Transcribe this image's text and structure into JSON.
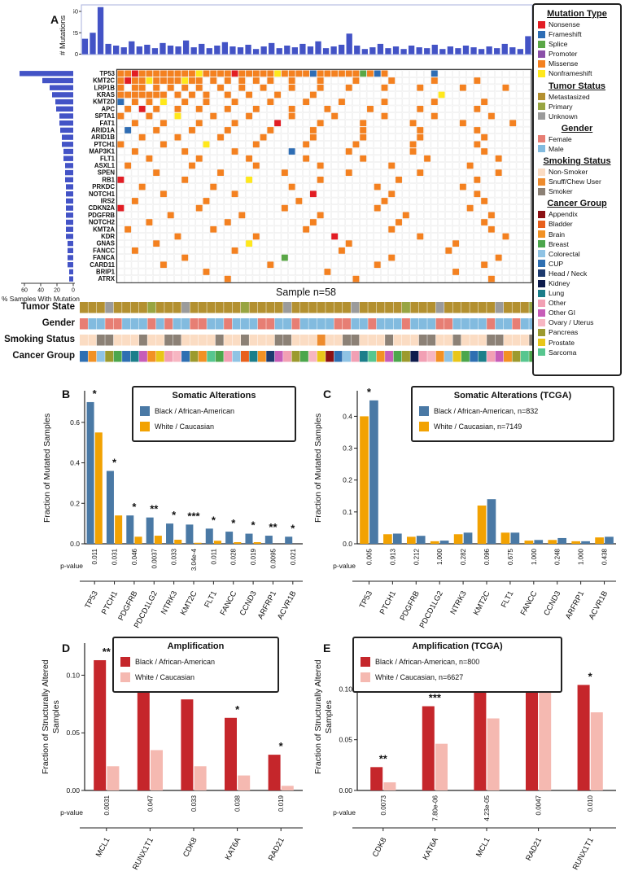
{
  "legend": {
    "sections": [
      {
        "title": "Mutation Type",
        "items": [
          {
            "label": "Nonsense",
            "color": "#e21d24"
          },
          {
            "label": "Frameshift",
            "color": "#2e6db4"
          },
          {
            "label": "Splice",
            "color": "#5aa746"
          },
          {
            "label": "Promoter",
            "color": "#8a4fa8"
          },
          {
            "label": "Missense",
            "color": "#f48120"
          },
          {
            "label": "Nonframeshift",
            "color": "#ffe81c"
          }
        ]
      },
      {
        "title": "Tumor Status",
        "items": [
          {
            "label": "Metastasized",
            "color": "#b39030"
          },
          {
            "label": "Primary",
            "color": "#98a542"
          },
          {
            "label": "Unknown",
            "color": "#9b9b9b"
          }
        ]
      },
      {
        "title": "Gender",
        "items": [
          {
            "label": "Female",
            "color": "#e77e74"
          },
          {
            "label": "Male",
            "color": "#82bbdf"
          }
        ]
      },
      {
        "title": "Smoking Status",
        "items": [
          {
            "label": "Non-Smoker",
            "color": "#fbdcc3"
          },
          {
            "label": "Snuff/Chew User",
            "color": "#ee8b2d"
          },
          {
            "label": "Smoker",
            "color": "#8c8176"
          }
        ]
      },
      {
        "title": "Cancer Group",
        "items": [
          {
            "label": "Appendix",
            "color": "#8b1013"
          },
          {
            "label": "Bladder",
            "color": "#e8601c"
          },
          {
            "label": "Brain",
            "color": "#f29124"
          },
          {
            "label": "Breast",
            "color": "#4ca64c"
          },
          {
            "label": "Colorectal",
            "color": "#8fc3e4"
          },
          {
            "label": "CUP",
            "color": "#2e6fb2"
          },
          {
            "label": "Head / Neck",
            "color": "#1d3a6e"
          },
          {
            "label": "Kidney",
            "color": "#0d1b4c"
          },
          {
            "label": "Lung",
            "color": "#1b7e8a"
          },
          {
            "label": "Other",
            "color": "#f2a0b4"
          },
          {
            "label": "Other GI",
            "color": "#c75db8"
          },
          {
            "label": "Ovary / Uterus",
            "color": "#f7b6c2"
          },
          {
            "label": "Pancreas",
            "color": "#9c9a2e"
          },
          {
            "label": "Prostate",
            "color": "#e8c619"
          },
          {
            "label": "Sarcoma",
            "color": "#57c68f"
          }
        ]
      }
    ]
  },
  "chart_data": {
    "A": {
      "type": "oncoprint",
      "label": "A",
      "sample_label": "Sample n=58",
      "top": {
        "type": "bar",
        "ylabel": "# Mutations",
        "yticks": [
          0,
          25,
          50
        ],
        "values": [
          18,
          25,
          55,
          12,
          10,
          8,
          15,
          9,
          11,
          7,
          13,
          10,
          9,
          16,
          8,
          12,
          7,
          10,
          14,
          9,
          8,
          11,
          6,
          9,
          13,
          7,
          10,
          8,
          12,
          9,
          15,
          7,
          9,
          11,
          24,
          10,
          6,
          8,
          12,
          7,
          9,
          6,
          10,
          8,
          7,
          11,
          6,
          9,
          7,
          10,
          8,
          6,
          9,
          7,
          12,
          8,
          6,
          21
        ]
      },
      "left": {
        "type": "bar",
        "xlabel": "% Samples With Mutation",
        "xticks": [
          60,
          40,
          20,
          0
        ]
      },
      "mutation_colors": {
        "N": "#e21d24",
        "F": "#2e6db4",
        "S": "#5aa746",
        "P": "#8a4fa8",
        "M": "#f48120",
        "X": "#ffe81c"
      },
      "rows": [
        {
          "gene": "TP53",
          "pct": 66,
          "cells": "0M,1M,2N,3M,4M,5M,6M,7M,8M,9M,10M,11X,12M,13M,14M,15M,16N,17M,18M,19M,20M,21M,22X,23M,24M,25M,26M,27F,28M,29M,30M,31M,32M,33M,34S,35M,36F,37M,44F"
        },
        {
          "gene": "KMT2C",
          "pct": 38,
          "cells": "0M,1N,2M,3M,4X,5M,6M,7M,8M,9X,10M,11M,13M,15M,17M,19M,21M,24M,28M,33M,38M,44M,50M"
        },
        {
          "gene": "LRP1B",
          "pct": 29,
          "cells": "0M,2M,3M,5M,7M,9M,11M,14M,17M,20M,24M,28M,32M,37M,42M,48M,54M"
        },
        {
          "gene": "KRAS",
          "pct": 26,
          "cells": "0M,1M,2M,3M,4M,5M,6M,8M,10M,12M,15M,18M,22M,27M,45X"
        },
        {
          "gene": "KMT2D",
          "pct": 22,
          "cells": "0F,2M,4M,6X,9M,12M,16M,21M,26M,31M,37M,44M,51M"
        },
        {
          "gene": "APC",
          "pct": 21,
          "cells": "1M,3N,5M,8M,11M,15M,19M,24M,29M,35M,42M,50M"
        },
        {
          "gene": "SPTA1",
          "pct": 17,
          "cells": "0M,4M,8X,13M,18M,24M,30M,37M,44M,52M"
        },
        {
          "gene": "FAT1",
          "pct": 17,
          "cells": "2M,6M,11M,16M,22N,28M,34M,41M,48M,55M"
        },
        {
          "gene": "ARID1A",
          "pct": 16,
          "cells": "1F,5M,10M,15M,21M,27M,34M,42M,50M"
        },
        {
          "gene": "ARID1B",
          "pct": 14,
          "cells": "3M,8M,14M,20M,27M,34M,42M,51M"
        },
        {
          "gene": "PTCH1",
          "pct": 14,
          "cells": "0M,6M,12X,19M,26M,33M,41M,50M"
        },
        {
          "gene": "MAP3K1",
          "pct": 12,
          "cells": "2M,9M,16M,24F,32M,41M,51M"
        },
        {
          "gene": "FLT1",
          "pct": 12,
          "cells": "4M,11M,18M,26M,34M,43M,53M"
        },
        {
          "gene": "ASXL1",
          "pct": 10,
          "cells": "1M,10M,19M,28M,38M,49M"
        },
        {
          "gene": "SPEN",
          "pct": 10,
          "cells": "5M,14M,23M,32M,42M,53M"
        },
        {
          "gene": "RB1",
          "pct": 10,
          "cells": "0N,9M,18X,28M,39M,50M"
        },
        {
          "gene": "PRKDC",
          "pct": 9,
          "cells": "3M,13M,24M,36M,48M"
        },
        {
          "gene": "NOTCH1",
          "pct": 9,
          "cells": "6M,16M,27N,38M,50M"
        },
        {
          "gene": "IRS2",
          "pct": 9,
          "cells": "2M,12M,25M,37M,51M"
        },
        {
          "gene": "CDKN2A",
          "pct": 9,
          "cells": "0N,11M,23M,36M,49M"
        },
        {
          "gene": "PDGFRB",
          "pct": 9,
          "cells": "7M,17M,28M,40M,52M"
        },
        {
          "gene": "NOTCH2",
          "pct": 9,
          "cells": "4M,15M,27M,39M,51M"
        },
        {
          "gene": "KMT2A",
          "pct": 9,
          "cells": "1M,13M,26M,38M,52M"
        },
        {
          "gene": "KDR",
          "pct": 9,
          "cells": "8M,19M,30N,42M,54M"
        },
        {
          "gene": "GNAS",
          "pct": 7,
          "cells": "5M,18X,32M,47M"
        },
        {
          "gene": "FANCC",
          "pct": 7,
          "cells": "2M,16M,31M,46M"
        },
        {
          "gene": "FANCA",
          "pct": 7,
          "cells": "9M,23S,38M,53M"
        },
        {
          "gene": "CARD11",
          "pct": 7,
          "cells": "6M,21M,36M,51M"
        },
        {
          "gene": "BRIP1",
          "pct": 5,
          "cells": "12M,29M,47M"
        },
        {
          "gene": "ATRX",
          "pct": 5,
          "cells": "15M,33M,52M"
        }
      ],
      "tracks": [
        {
          "label": "Tumor State",
          "codes": "MMMUMMMMPMMMUMMMMMMPMMMMUMMMMMMMUMMMMMPMMMUMMMMMMUMMMPMMMM",
          "palette": {
            "M": "#b39030",
            "P": "#98a542",
            "U": "#9b9b9b"
          }
        },
        {
          "label": "Gender",
          "codes": "FMMFFMMMFMFMMFFMMFMMMFFMMFMMMMFFMMFMMMFMMMFFMMMMFMMFMMMMMM",
          "palette": {
            "F": "#e77e74",
            "M": "#82bbdf"
          }
        },
        {
          "label": "Smoking Status",
          "codes": "NNKKNNNKNNKKNNNNKNNKNNNKKNNNSNNKKNNNKNNNKKNNKNNNKKNNNKNNKN",
          "palette": {
            "N": "#fbdcc3",
            "S": "#ee8b2d",
            "K": "#8c8176"
          }
        },
        {
          "label": "Cancer Group",
          "codes": "URCPEULGRTOVUPRSEOCBLRHGOPEVTAUCOLSRGEPKOVRCTEULOGRPSEOUHB",
          "palette": {
            "A": "#8b1013",
            "B": "#e8601c",
            "R": "#f29124",
            "E": "#4ca64c",
            "C": "#8fc3e4",
            "U": "#2e6fb2",
            "H": "#1d3a6e",
            "K": "#0d1b4c",
            "L": "#1b7e8a",
            "O": "#f2a0b4",
            "G": "#c75db8",
            "V": "#f7b6c2",
            "P": "#9c9a2e",
            "T": "#e8c619",
            "S": "#57c68f"
          }
        }
      ]
    },
    "B": {
      "type": "bar",
      "label": "B",
      "legend_title": "Somatic Alterations",
      "ylabel": "Fraction of Mutated Samples",
      "pvalue_label": "p-value",
      "ymax": 0.74,
      "yticks": [
        {
          "v": 0,
          "label": "0.0"
        },
        {
          "v": 0.2,
          "label": "0.2"
        },
        {
          "v": 0.4,
          "label": "0.4"
        },
        {
          "v": 0.6,
          "label": "0.6"
        }
      ],
      "bar_colors": [
        "#4a79a5",
        "#f2a202"
      ],
      "series": [
        {
          "name": "Black / African-American",
          "color": "#4a79a5"
        },
        {
          "name": "White / Caucasian",
          "color": "#f2a202"
        }
      ],
      "groups": [
        {
          "gene": "TP53",
          "v": [
            0.7,
            0.55
          ],
          "p": "0.011",
          "stars": "*"
        },
        {
          "gene": "PTCH1",
          "v": [
            0.36,
            0.14
          ],
          "p": "0.031",
          "stars": "*"
        },
        {
          "gene": "PDGFRB",
          "v": [
            0.14,
            0.035
          ],
          "p": "0.046",
          "stars": "*"
        },
        {
          "gene": "PDCD1LG2",
          "v": [
            0.13,
            0.04
          ],
          "p": "0.0037",
          "stars": "**"
        },
        {
          "gene": "NTRK3",
          "v": [
            0.1,
            0.02
          ],
          "p": "0.033",
          "stars": "*"
        },
        {
          "gene": "KMT2C",
          "v": [
            0.095,
            0.005
          ],
          "p": "3.04e-4",
          "stars": "***"
        },
        {
          "gene": "FLT1",
          "v": [
            0.075,
            0.015
          ],
          "p": "0.011",
          "stars": "*"
        },
        {
          "gene": "FANCC",
          "v": [
            0.06,
            0.008
          ],
          "p": "0.028",
          "stars": "*"
        },
        {
          "gene": "CCND3",
          "v": [
            0.05,
            0.008
          ],
          "p": "0.019",
          "stars": "*"
        },
        {
          "gene": "ARFRP1",
          "v": [
            0.04,
            0
          ],
          "p": "0.0095",
          "stars": "**"
        },
        {
          "gene": "ACVR1B",
          "v": [
            0.035,
            0
          ],
          "p": "0.021",
          "stars": "*"
        }
      ]
    },
    "C": {
      "type": "bar",
      "label": "C",
      "legend_title": "Somatic Alterations (TCGA)",
      "ylabel": "Fraction of Mutated Samples",
      "pvalue_label": "p-value",
      "ymax": 0.47,
      "yticks": [
        {
          "v": 0,
          "label": "0.0"
        },
        {
          "v": 0.1,
          "label": "0.1"
        },
        {
          "v": 0.2,
          "label": "0.2"
        },
        {
          "v": 0.3,
          "label": "0.3"
        },
        {
          "v": 0.4,
          "label": "0.4"
        }
      ],
      "bar_colors": [
        "#f2a202",
        "#4a79a5"
      ],
      "series": [
        {
          "name": "Black / African-American, n=832",
          "color": "#4a79a5"
        },
        {
          "name": "White / Caucasian, n=7149",
          "color": "#f2a202"
        }
      ],
      "groups": [
        {
          "gene": "TP53",
          "v": [
            0.4,
            0.45
          ],
          "p": "0.005",
          "stars": "*"
        },
        {
          "gene": "PTCH1",
          "v": [
            0.03,
            0.032
          ],
          "p": "0.913",
          "stars": ""
        },
        {
          "gene": "PDGFRB",
          "v": [
            0.022,
            0.025
          ],
          "p": "0.212",
          "stars": ""
        },
        {
          "gene": "PDCD1LG2",
          "v": [
            0.008,
            0.01
          ],
          "p": "1.000",
          "stars": ""
        },
        {
          "gene": "NTRK3",
          "v": [
            0.03,
            0.035
          ],
          "p": "0.282",
          "stars": ""
        },
        {
          "gene": "KMT2C",
          "v": [
            0.12,
            0.14
          ],
          "p": "0.096",
          "stars": ""
        },
        {
          "gene": "FLT1",
          "v": [
            0.035,
            0.035
          ],
          "p": "0.675",
          "stars": ""
        },
        {
          "gene": "FANCC",
          "v": [
            0.01,
            0.012
          ],
          "p": "1.000",
          "stars": ""
        },
        {
          "gene": "CCND3",
          "v": [
            0.012,
            0.018
          ],
          "p": "0.248",
          "stars": ""
        },
        {
          "gene": "ARFRP1",
          "v": [
            0.008,
            0.008
          ],
          "p": "1.000",
          "stars": ""
        },
        {
          "gene": "ACVR1B",
          "v": [
            0.02,
            0.022
          ],
          "p": "0.438",
          "stars": ""
        }
      ]
    },
    "D": {
      "type": "bar",
      "label": "D",
      "legend_title": "Amplification",
      "ylabel": "Fraction of Structurally Altered Samples",
      "pvalue_label": "p-value",
      "ymax": 0.125,
      "yticks": [
        {
          "v": 0,
          "label": "0.00"
        },
        {
          "v": 0.05,
          "label": "0.05"
        },
        {
          "v": 0.1,
          "label": "0.10"
        }
      ],
      "bar_colors": [
        "#c5262b",
        "#f5b9b1"
      ],
      "series": [
        {
          "name": "Black / African-American",
          "color": "#c5262b"
        },
        {
          "name": "White / Caucasian",
          "color": "#f5b9b1"
        }
      ],
      "groups": [
        {
          "gene": "MCL1",
          "v": [
            0.113,
            0.021
          ],
          "p": "0.0031",
          "stars": "**"
        },
        {
          "gene": "RUNX1T1",
          "v": [
            0.096,
            0.035
          ],
          "p": "0.047",
          "stars": "*"
        },
        {
          "gene": "CDK8",
          "v": [
            0.079,
            0.021
          ],
          "p": "0.033",
          "stars": "*"
        },
        {
          "gene": "KAT6A",
          "v": [
            0.063,
            0.013
          ],
          "p": "0.038",
          "stars": "*"
        },
        {
          "gene": "RAD21",
          "v": [
            0.031,
            0.004
          ],
          "p": "0.019",
          "stars": "*"
        }
      ]
    },
    "E": {
      "type": "bar",
      "label": "E",
      "legend_title": "Amplification (TCGA)",
      "ylabel": "Fraction of Structurally Altered Samples",
      "pvalue_label": "p-value",
      "ymax": 0.142,
      "yticks": [
        {
          "v": 0,
          "label": "0.00"
        },
        {
          "v": 0.05,
          "label": "0.05"
        },
        {
          "v": 0.1,
          "label": "0.10"
        }
      ],
      "bar_colors": [
        "#c5262b",
        "#f5b9b1"
      ],
      "series": [
        {
          "name": "Black / African-American, n=800",
          "color": "#c5262b"
        },
        {
          "name": "White / Caucasian, n=6627",
          "color": "#f5b9b1"
        }
      ],
      "groups": [
        {
          "gene": "CDK8",
          "v": [
            0.023,
            0.008
          ],
          "p": "0.0073",
          "stars": "**"
        },
        {
          "gene": "KAT6A",
          "v": [
            0.083,
            0.046
          ],
          "p": "7.80e-06",
          "stars": "***"
        },
        {
          "gene": "MCL1",
          "v": [
            0.115,
            0.071
          ],
          "p": "4.23e-05",
          "stars": "***"
        },
        {
          "gene": "RAD21",
          "v": [
            0.13,
            0.098
          ],
          "p": "0.0047",
          "stars": "**"
        },
        {
          "gene": "RUNX1T1",
          "v": [
            0.104,
            0.077
          ],
          "p": "0.010",
          "stars": "*"
        }
      ]
    }
  }
}
